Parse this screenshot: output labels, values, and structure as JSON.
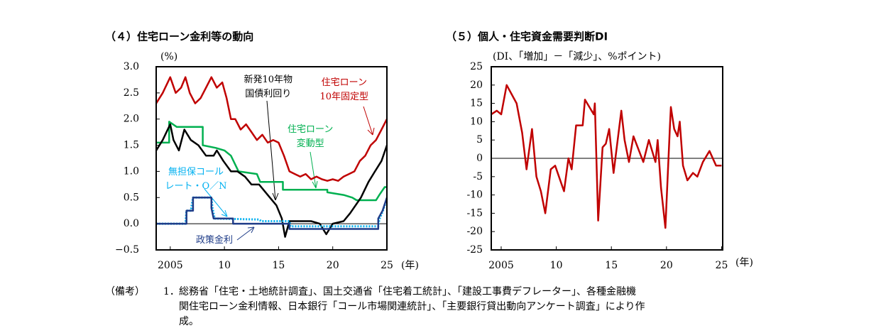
{
  "chart_data": [
    {
      "type": "line",
      "title": "（４）住宅ローン金利等の動向",
      "y_label": "(%)",
      "x_label": "(年)",
      "xlim": [
        2003.7,
        2025
      ],
      "xticks": [
        2005,
        {
          "value": 2010,
          "label": "10"
        },
        {
          "value": 2015,
          "label": "15"
        },
        {
          "value": 2020,
          "label": "20"
        },
        {
          "value": 2025,
          "label": "25"
        }
      ],
      "ylim": [
        -0.5,
        3.0
      ],
      "yticks": [
        {
          "value": 3.0,
          "label": "3.0"
        },
        {
          "value": 2.5,
          "label": "2.5"
        },
        {
          "value": 2.0,
          "label": "2.0"
        },
        {
          "value": 1.5,
          "label": "1.5"
        },
        {
          "value": 1.0,
          "label": "1.0"
        },
        {
          "value": 0.5,
          "label": "0.5"
        },
        {
          "value": 0.0,
          "label": "0.0"
        },
        {
          "value": -0.5,
          "label": "−0.5"
        }
      ],
      "series": [
        {
          "name": "住宅ローン\n10年固定型",
          "color": "#c00000",
          "style": "solid",
          "x": [
            2003.7,
            2004.3,
            2005,
            2005.5,
            2006,
            2006.4,
            2006.8,
            2007.3,
            2007.8,
            2008.3,
            2008.8,
            2009.3,
            2009.8,
            2010.2,
            2010.6,
            2011,
            2011.5,
            2012,
            2012.5,
            2013,
            2013.5,
            2014,
            2014.5,
            2015,
            2015.5,
            2016,
            2016.5,
            2017,
            2017.5,
            2018,
            2018.5,
            2019,
            2019.5,
            2020,
            2020.5,
            2021,
            2021.5,
            2022,
            2022.5,
            2023,
            2023.5,
            2024,
            2024.5,
            2025
          ],
          "values": [
            2.3,
            2.5,
            2.8,
            2.5,
            2.6,
            2.8,
            2.5,
            2.3,
            2.4,
            2.6,
            2.8,
            2.6,
            2.7,
            2.4,
            2.0,
            2.0,
            1.8,
            1.9,
            1.75,
            1.6,
            1.7,
            1.55,
            1.6,
            1.55,
            1.3,
            1.0,
            0.95,
            0.9,
            0.95,
            0.85,
            0.9,
            0.85,
            0.82,
            0.85,
            0.82,
            0.9,
            0.95,
            1.0,
            1.2,
            1.3,
            1.5,
            1.6,
            1.8,
            2.0
          ]
        },
        {
          "name": "住宅ローン\n変動型",
          "color": "#00b050",
          "style": "solid",
          "x": [
            2003.7,
            2004.9,
            2004.9,
            2005.6,
            2008,
            2008,
            2009.2,
            2010,
            2010.6,
            2011.3,
            2013,
            2013.3,
            2015.4,
            2015.4,
            2019.5,
            2019.5,
            2021,
            2021.8,
            2022.2,
            2024,
            2024.3,
            2024.8,
            2025
          ],
          "values": [
            1.55,
            1.55,
            1.95,
            1.85,
            1.85,
            1.5,
            1.45,
            1.4,
            1.3,
            1.0,
            0.95,
            0.8,
            0.8,
            0.65,
            0.65,
            0.6,
            0.55,
            0.5,
            0.45,
            0.45,
            0.55,
            0.7,
            0.7
          ]
        },
        {
          "name": "新発10年物\n国債利回り",
          "color": "#000000",
          "style": "solid",
          "x": [
            2003.7,
            2004.3,
            2005,
            2005.3,
            2005.8,
            2006.3,
            2006.9,
            2007.6,
            2008.3,
            2009,
            2009.3,
            2009.9,
            2010.6,
            2011.2,
            2011.9,
            2012.5,
            2013.2,
            2014.2,
            2014.8,
            2015.3,
            2015.6,
            2016,
            2017,
            2018,
            2018.8,
            2019.4,
            2020,
            2021,
            2021.6,
            2022.6,
            2023.3,
            2023.9,
            2024.5,
            2025
          ],
          "values": [
            1.4,
            1.6,
            1.9,
            1.6,
            1.4,
            1.8,
            1.6,
            1.5,
            1.3,
            1.3,
            1.4,
            1.2,
            1.0,
            1.0,
            0.9,
            0.75,
            0.75,
            0.5,
            0.35,
            0.1,
            -0.25,
            0.05,
            0.05,
            0.05,
            0.0,
            -0.2,
            0.0,
            0.05,
            0.2,
            0.5,
            0.8,
            1.0,
            1.2,
            1.5
          ]
        },
        {
          "name": "無担保コール\nレート・O／N",
          "color": "#00b0f0",
          "style": "dotted",
          "x": [
            2003.7,
            2006.4,
            2006.5,
            2006.9,
            2007.1,
            2008.8,
            2008.9,
            2009.1,
            2013.2,
            2013.4,
            2016,
            2016.1,
            2024.2,
            2024.3,
            2024.6,
            2025
          ],
          "values": [
            0.0,
            0.0,
            0.25,
            0.25,
            0.5,
            0.5,
            0.3,
            0.1,
            0.08,
            0.05,
            0.05,
            -0.05,
            -0.05,
            0.08,
            0.23,
            0.48
          ]
        },
        {
          "name": "政策金利",
          "color": "#1f3c88",
          "style": "solid",
          "x": [
            2003.7,
            2006.5,
            2006.5,
            2007.1,
            2007.1,
            2008.8,
            2008.8,
            2009,
            2010.8,
            2010.8,
            2016,
            2016,
            2024.2,
            2024.2,
            2024.6,
            2025
          ],
          "values": [
            0,
            0,
            0.25,
            0.25,
            0.5,
            0.5,
            0.3,
            0.1,
            0.1,
            0,
            0,
            -0.1,
            -0.1,
            0.1,
            0.25,
            0.5
          ]
        }
      ]
    },
    {
      "type": "line",
      "title": "（５）個人・住宅資金需要判断DI",
      "y_label": "(DI、「増加」－「減少」、%ポイント)",
      "x_label": "(年)",
      "xlim": [
        2004.1,
        2025.1
      ],
      "xticks": [
        2005,
        {
          "value": 2010,
          "label": "10"
        },
        {
          "value": 2015,
          "label": "15"
        },
        {
          "value": 2020,
          "label": "20"
        },
        {
          "value": 2025,
          "label": "25"
        }
      ],
      "ylim": [
        -25,
        25
      ],
      "yticks": [
        25,
        20,
        15,
        10,
        5,
        0,
        -5,
        -10,
        -15,
        -20,
        -25
      ],
      "series": [
        {
          "color": "#c00000",
          "style": "solid",
          "x": [
            2004.1,
            2004.6,
            2005,
            2005.5,
            2006.4,
            2006.9,
            2007.3,
            2007.8,
            2008.2,
            2008.6,
            2009,
            2009.5,
            2009.9,
            2010.7,
            2011.1,
            2011.4,
            2011.8,
            2012.4,
            2012.6,
            2013.4,
            2013.5,
            2013.8,
            2014.2,
            2014.5,
            2014.8,
            2015.2,
            2015.9,
            2016.2,
            2016.6,
            2017,
            2017.9,
            2018.4,
            2019,
            2019.2,
            2019.5,
            2019.9,
            2020.3,
            2020.4,
            2020.7,
            2021,
            2021.2,
            2021.5,
            2021.9,
            2022.4,
            2022.8,
            2023.3,
            2023.9,
            2024.5,
            2025
          ],
          "values": [
            12,
            13,
            12,
            20,
            15,
            7,
            -3,
            8,
            -5,
            -9,
            -15,
            -3,
            -2,
            -9,
            0,
            -3,
            9,
            9,
            16,
            12,
            15,
            -17,
            3,
            4,
            8,
            -4,
            13,
            5,
            -1,
            6,
            -1,
            5,
            -1,
            5,
            -8,
            -19,
            8,
            14,
            8,
            6,
            10,
            -2,
            -6,
            -4,
            -5,
            -1,
            2,
            -2,
            -2
          ]
        }
      ]
    }
  ],
  "notes": {
    "label": "（備考）",
    "number": "1．",
    "lines": [
      "総務省「住宅・土地統計調査」、国土交通省「住宅着工統計」、「建設工事費デフレーター」、各種金融機",
      "関住宅ローン金利情報、日本銀行「コール市場関連統計」、「主要銀行貸出動向アンケート調査」により作",
      "成。"
    ]
  }
}
